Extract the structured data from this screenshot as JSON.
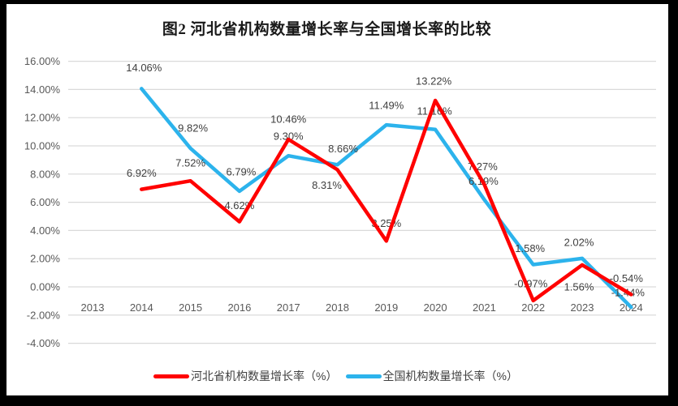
{
  "title": "图2 河北省机构数量增长率与全国增长率的比较",
  "chart_data": {
    "type": "line",
    "title": "图2 河北省机构数量增长率与全国增长率的比较",
    "categories": [
      "2013",
      "2014",
      "2015",
      "2016",
      "2017",
      "2018",
      "2019",
      "2020",
      "2021",
      "2022",
      "2023",
      "2024"
    ],
    "x_start_index": 1,
    "xlabel": "",
    "ylabel": "",
    "ylim": [
      -4,
      16
    ],
    "y_tick_step": 2,
    "grid": true,
    "legend_position": "bottom",
    "y_axis": {
      "tick_labels": [
        "16.00%",
        "14.00%",
        "12.00%",
        "10.00%",
        "8.00%",
        "6.00%",
        "4.00%",
        "2.00%",
        "0.00%",
        "-2.00%",
        "-4.00%"
      ],
      "tick_values": [
        16,
        14,
        12,
        10,
        8,
        6,
        4,
        2,
        0,
        -2,
        -4
      ]
    },
    "series": [
      {
        "name": "河北省机构数量增长率（%）",
        "color": "#ff0000",
        "values": [
          6.92,
          7.52,
          4.62,
          10.46,
          8.31,
          3.25,
          13.22,
          7.27,
          -0.97,
          1.56,
          -0.54
        ],
        "labels": [
          "6.92%",
          "7.52%",
          "4.62%",
          "10.46%",
          "8.31%",
          "3.25%",
          "13.22%",
          "7.27%",
          "-0.97%",
          "1.56%",
          "-0.54%"
        ],
        "label_offsets": [
          [
            0,
            -20
          ],
          [
            0,
            -22
          ],
          [
            0,
            -20
          ],
          [
            0,
            -25
          ],
          [
            -13,
            19
          ],
          [
            0,
            -22
          ],
          [
            -2,
            -24
          ],
          [
            -2,
            -22
          ],
          [
            -3,
            -21
          ],
          [
            -4,
            27
          ],
          [
            -6,
            -20
          ]
        ]
      },
      {
        "name": "全国机构数量增长率（%）",
        "color": "#2cb3ec",
        "values": [
          14.06,
          9.82,
          6.79,
          9.3,
          8.66,
          11.49,
          11.16,
          6.19,
          1.58,
          2.02,
          -1.44
        ],
        "labels": [
          "14.06%",
          "9.82%",
          "6.79%",
          "9.30%",
          "8.66%",
          "11.49%",
          "11.16%",
          "6.19%",
          "1.58%",
          "2.02%",
          "-1.44%"
        ],
        "label_offsets": [
          [
            3,
            -26
          ],
          [
            3,
            -25
          ],
          [
            2,
            -24
          ],
          [
            0,
            -24
          ],
          [
            7,
            -20
          ],
          [
            0,
            -24
          ],
          [
            -1,
            -23
          ],
          [
            -1,
            -23
          ],
          [
            -4,
            -20
          ],
          [
            -4,
            -20
          ],
          [
            -4,
            -18
          ]
        ]
      }
    ],
    "styles": {
      "grid_color": "#d9d9d9",
      "axis_text_color": "#595959",
      "data_label_color": "#3f3f3f",
      "line_width": 4.5
    }
  },
  "legend": {
    "items": [
      {
        "label": "河北省机构数量增长率（%）"
      },
      {
        "label": "全国机构数量增长率（%）"
      }
    ]
  }
}
